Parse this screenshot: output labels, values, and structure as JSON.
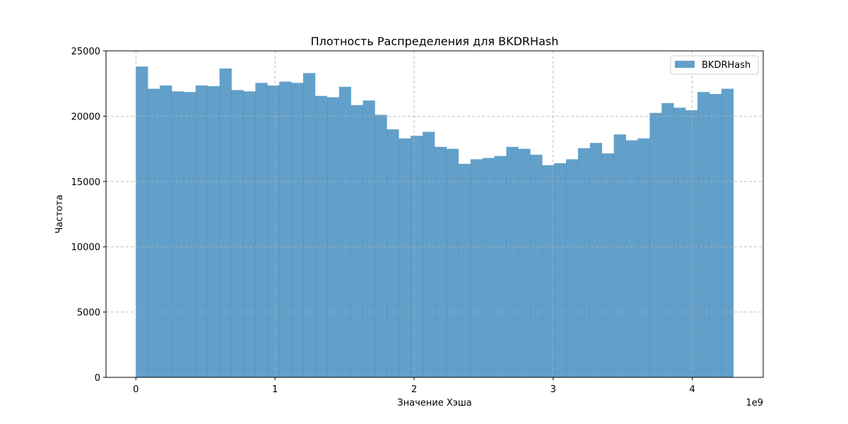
{
  "chart_data": {
    "type": "bar",
    "title": "Плотность Распределения для BKDRHash",
    "xlabel": "Значение Хэша",
    "ylabel": "Частота",
    "x_offset_label": "1e9",
    "xlim": [
      -0.2147,
      4.5097
    ],
    "ylim": [
      0,
      25000
    ],
    "xticks": [
      0,
      1,
      2,
      3,
      4
    ],
    "xtick_labels": [
      "0",
      "1",
      "2",
      "3",
      "4"
    ],
    "yticks": [
      0,
      5000,
      10000,
      15000,
      20000,
      25000
    ],
    "ytick_labels": [
      "0",
      "5000",
      "10000",
      "15000",
      "20000",
      "25000"
    ],
    "grid": true,
    "legend_position": "upper right",
    "colors": {
      "bars": "#1f77b4",
      "bar_alpha": 0.7,
      "grid": "#b0b0b0"
    },
    "series": [
      {
        "name": "BKDRHash",
        "bin_start": 0,
        "bin_end": 4.295,
        "values": [
          23800,
          22100,
          22350,
          21900,
          21850,
          22350,
          22300,
          23650,
          22000,
          21900,
          22550,
          22350,
          22650,
          22550,
          23300,
          21550,
          21450,
          22250,
          20850,
          21200,
          20100,
          19000,
          18300,
          18500,
          18800,
          17650,
          17500,
          16350,
          16700,
          16800,
          16950,
          17650,
          17500,
          17050,
          16250,
          16400,
          16700,
          17550,
          17950,
          17150,
          18600,
          18150,
          18300,
          20250,
          21000,
          20650,
          20450,
          21850,
          21700,
          22100
        ]
      }
    ]
  }
}
